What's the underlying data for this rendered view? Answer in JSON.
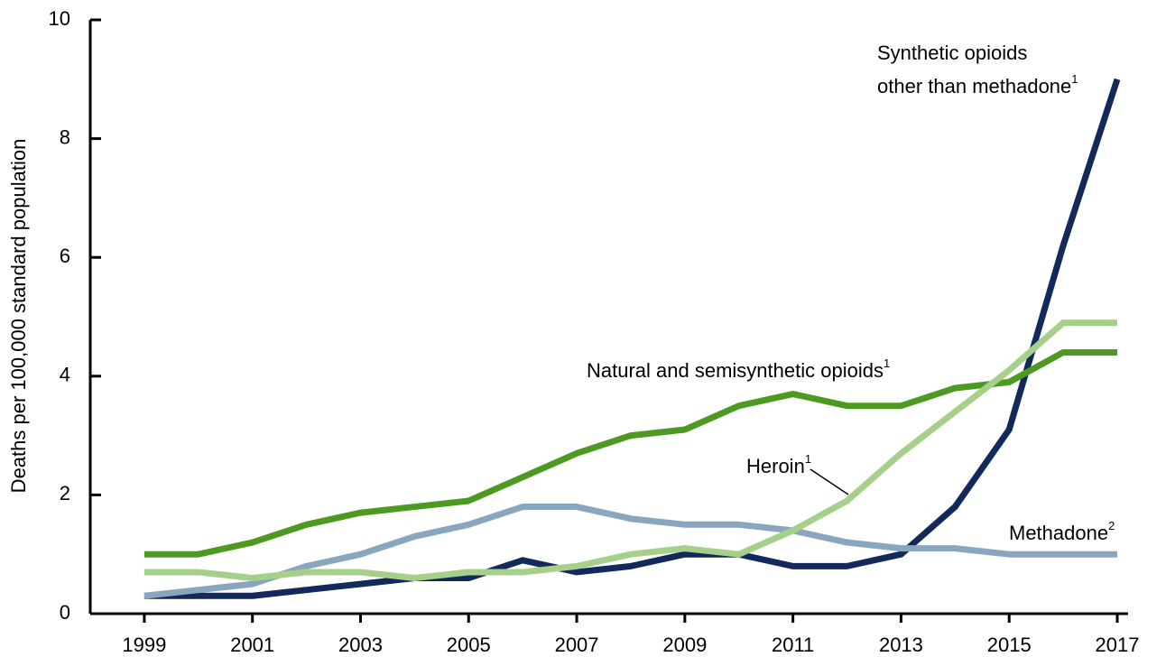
{
  "chart_data": {
    "type": "line",
    "y_label": "Deaths per 100,000 standard population",
    "x": [
      1999,
      2000,
      2001,
      2002,
      2003,
      2004,
      2005,
      2006,
      2007,
      2008,
      2009,
      2010,
      2011,
      2012,
      2013,
      2014,
      2015,
      2016,
      2017
    ],
    "series": [
      {
        "name": [
          "Synthetic opioids",
          "other than methadone"
        ],
        "sup": "1",
        "color": "#13295b",
        "values": [
          0.3,
          0.3,
          0.3,
          0.4,
          0.5,
          0.6,
          0.6,
          0.9,
          0.7,
          0.8,
          1.0,
          1.0,
          0.8,
          0.8,
          1.0,
          1.8,
          3.1,
          6.2,
          9.0
        ]
      },
      {
        "name": "Natural and semisynthetic opioids",
        "sup": "1",
        "color": "#4d9a22",
        "values": [
          1.0,
          1.0,
          1.2,
          1.5,
          1.7,
          1.8,
          1.9,
          2.3,
          2.7,
          3.0,
          3.1,
          3.5,
          3.7,
          3.5,
          3.5,
          3.8,
          3.9,
          4.4,
          4.4
        ]
      },
      {
        "name": "Methadone",
        "sup": "2",
        "color": "#8aa6bf",
        "values": [
          0.3,
          0.4,
          0.5,
          0.8,
          1.0,
          1.3,
          1.5,
          1.8,
          1.8,
          1.6,
          1.5,
          1.5,
          1.4,
          1.2,
          1.1,
          1.1,
          1.0,
          1.0,
          1.0
        ]
      },
      {
        "name": "Heroin",
        "sup": "1",
        "color": "#a6d08a",
        "values": [
          0.7,
          0.7,
          0.6,
          0.7,
          0.7,
          0.6,
          0.7,
          0.7,
          0.8,
          1.0,
          1.1,
          1.0,
          1.4,
          1.9,
          2.7,
          3.4,
          4.1,
          4.9,
          4.9
        ]
      }
    ],
    "xlim": [
      1998,
      2017.2
    ],
    "xticks": [
      1999,
      2001,
      2003,
      2005,
      2007,
      2009,
      2011,
      2013,
      2015,
      2017
    ],
    "ylim": [
      0,
      10
    ],
    "yticks": [
      0,
      2,
      4,
      6,
      8,
      10
    ]
  }
}
